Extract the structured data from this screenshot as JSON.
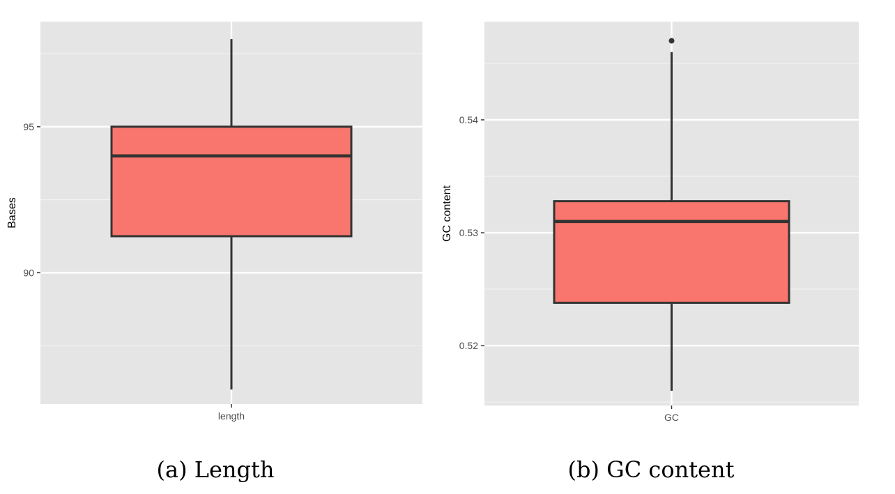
{
  "colors": {
    "panel_background": "#e5e5e5",
    "grid_major": "#ffffff",
    "grid_minor": "#f2f2f2",
    "box_fill": "#f8766d",
    "box_outline": "#333333"
  },
  "chart_data": [
    {
      "type": "boxplot",
      "caption": "(a) Length",
      "xlabel": "",
      "ylabel": "Bases",
      "categories": [
        "length"
      ],
      "ylim": [
        85.5,
        98.6
      ],
      "yticks": [
        90,
        95
      ],
      "ytick_labels": [
        "90",
        "95"
      ],
      "grid": true,
      "boxes": [
        {
          "category": "length",
          "whisker_low": 86,
          "q1": 91.25,
          "median": 94,
          "q3": 95,
          "whisker_high": 98,
          "outliers": []
        }
      ]
    },
    {
      "type": "boxplot",
      "caption": "(b) GC content",
      "xlabel": "",
      "ylabel": "GC content",
      "categories": [
        "GC"
      ],
      "ylim": [
        0.5147,
        0.5487
      ],
      "yticks": [
        0.52,
        0.53,
        0.54
      ],
      "ytick_labels": [
        "0.52",
        "0.53",
        "0.54"
      ],
      "grid": true,
      "boxes": [
        {
          "category": "GC",
          "whisker_low": 0.516,
          "q1": 0.5238,
          "median": 0.531,
          "q3": 0.5328,
          "whisker_high": 0.546,
          "outliers": [
            0.547
          ]
        }
      ]
    }
  ]
}
